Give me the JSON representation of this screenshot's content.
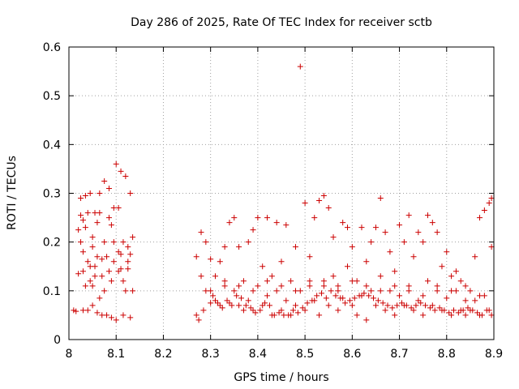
{
  "chart_data": {
    "type": "scatter",
    "title": "Day 286 of 2025, Rate Of TEC Index for receiver sctb",
    "xlabel": "GPS time / hours",
    "ylabel": "ROTI / TECUs",
    "xlim": [
      8.0,
      8.9
    ],
    "ylim": [
      0.0,
      0.6
    ],
    "xticks": [
      8,
      8.1,
      8.2,
      8.3,
      8.4,
      8.5,
      8.6,
      8.7,
      8.8,
      8.9
    ],
    "xtick_labels": [
      "8",
      "8.1",
      "8.2",
      "8.3",
      "8.4",
      "8.5",
      "8.6",
      "8.7",
      "8.8",
      "8.9"
    ],
    "yticks": [
      0,
      0.1,
      0.2,
      0.3,
      0.4,
      0.5,
      0.6
    ],
    "ytick_labels": [
      "0",
      "0.1",
      "0.2",
      "0.3",
      "0.4",
      "0.5",
      "0.6"
    ],
    "grid": true,
    "marker": "+",
    "marker_color": "#cc0000",
    "series": [
      {
        "name": "ROTI",
        "points": [
          [
            8.01,
            0.06
          ],
          [
            8.015,
            0.058
          ],
          [
            8.02,
            0.135
          ],
          [
            8.02,
            0.225
          ],
          [
            8.025,
            0.255
          ],
          [
            8.025,
            0.29
          ],
          [
            8.03,
            0.06
          ],
          [
            8.03,
            0.18
          ],
          [
            8.03,
            0.14
          ],
          [
            8.035,
            0.295
          ],
          [
            8.035,
            0.11
          ],
          [
            8.04,
            0.26
          ],
          [
            8.04,
            0.06
          ],
          [
            8.04,
            0.16
          ],
          [
            8.045,
            0.3
          ],
          [
            8.045,
            0.12
          ],
          [
            8.05,
            0.19
          ],
          [
            8.05,
            0.07
          ],
          [
            8.05,
            0.21
          ],
          [
            8.055,
            0.15
          ],
          [
            8.055,
            0.26
          ],
          [
            8.06,
            0.055
          ],
          [
            8.06,
            0.17
          ],
          [
            8.06,
            0.24
          ],
          [
            8.065,
            0.085
          ],
          [
            8.065,
            0.3
          ],
          [
            8.07,
            0.13
          ],
          [
            8.07,
            0.05
          ],
          [
            8.075,
            0.2
          ],
          [
            8.075,
            0.325
          ],
          [
            8.08,
            0.17
          ],
          [
            8.08,
            0.05
          ],
          [
            8.085,
            0.25
          ],
          [
            8.085,
            0.31
          ],
          [
            8.09,
            0.12
          ],
          [
            8.09,
            0.045
          ],
          [
            8.095,
            0.2
          ],
          [
            8.095,
            0.16
          ],
          [
            8.1,
            0.36
          ],
          [
            8.1,
            0.04
          ],
          [
            8.105,
            0.27
          ],
          [
            8.105,
            0.14
          ],
          [
            8.11,
            0.345
          ],
          [
            8.11,
            0.175
          ],
          [
            8.115,
            0.05
          ],
          [
            8.115,
            0.2
          ],
          [
            8.12,
            0.1
          ],
          [
            8.12,
            0.335
          ],
          [
            8.125,
            0.145
          ],
          [
            8.125,
            0.19
          ],
          [
            8.13,
            0.3
          ],
          [
            8.13,
            0.045
          ],
          [
            8.135,
            0.1
          ],
          [
            8.135,
            0.21
          ],
          [
            8.025,
            0.2
          ],
          [
            8.035,
            0.23
          ],
          [
            8.045,
            0.15
          ],
          [
            8.055,
            0.13
          ],
          [
            8.065,
            0.26
          ],
          [
            8.075,
            0.1
          ],
          [
            8.085,
            0.14
          ],
          [
            8.095,
            0.27
          ],
          [
            8.105,
            0.18
          ],
          [
            8.115,
            0.12
          ],
          [
            8.125,
            0.16
          ],
          [
            8.03,
            0.245
          ],
          [
            8.05,
            0.11
          ],
          [
            8.07,
            0.165
          ],
          [
            8.09,
            0.235
          ],
          [
            8.11,
            0.145
          ],
          [
            8.13,
            0.175
          ],
          [
            8.27,
            0.05
          ],
          [
            8.27,
            0.17
          ],
          [
            8.275,
            0.04
          ],
          [
            8.28,
            0.22
          ],
          [
            8.28,
            0.13
          ],
          [
            8.285,
            0.06
          ],
          [
            8.29,
            0.2
          ],
          [
            8.29,
            0.1
          ],
          [
            8.3,
            0.075
          ],
          [
            8.3,
            0.165
          ],
          [
            8.31,
            0.08
          ],
          [
            8.31,
            0.13
          ],
          [
            8.32,
            0.16
          ],
          [
            8.32,
            0.07
          ],
          [
            8.33,
            0.19
          ],
          [
            8.33,
            0.11
          ],
          [
            8.34,
            0.24
          ],
          [
            8.34,
            0.075
          ],
          [
            8.35,
            0.25
          ],
          [
            8.35,
            0.1
          ],
          [
            8.36,
            0.07
          ],
          [
            8.36,
            0.19
          ],
          [
            8.37,
            0.12
          ],
          [
            8.37,
            0.06
          ],
          [
            8.38,
            0.2
          ],
          [
            8.38,
            0.08
          ],
          [
            8.39,
            0.225
          ],
          [
            8.39,
            0.06
          ],
          [
            8.4,
            0.25
          ],
          [
            8.4,
            0.11
          ],
          [
            8.41,
            0.07
          ],
          [
            8.41,
            0.15
          ],
          [
            8.42,
            0.25
          ],
          [
            8.42,
            0.09
          ],
          [
            8.43,
            0.05
          ],
          [
            8.43,
            0.13
          ],
          [
            8.44,
            0.24
          ],
          [
            8.44,
            0.1
          ],
          [
            8.45,
            0.06
          ],
          [
            8.45,
            0.16
          ],
          [
            8.46,
            0.235
          ],
          [
            8.46,
            0.08
          ],
          [
            8.47,
            0.05
          ],
          [
            8.47,
            0.12
          ],
          [
            8.48,
            0.19
          ],
          [
            8.48,
            0.07
          ],
          [
            8.49,
            0.56
          ],
          [
            8.49,
            0.1
          ],
          [
            8.5,
            0.28
          ],
          [
            8.5,
            0.06
          ],
          [
            8.51,
            0.12
          ],
          [
            8.51,
            0.17
          ],
          [
            8.52,
            0.25
          ],
          [
            8.52,
            0.08
          ],
          [
            8.53,
            0.285
          ],
          [
            8.53,
            0.05
          ],
          [
            8.54,
            0.295
          ],
          [
            8.54,
            0.11
          ],
          [
            8.55,
            0.27
          ],
          [
            8.55,
            0.07
          ],
          [
            8.56,
            0.21
          ],
          [
            8.56,
            0.13
          ],
          [
            8.57,
            0.06
          ],
          [
            8.57,
            0.1
          ],
          [
            8.58,
            0.24
          ],
          [
            8.58,
            0.085
          ],
          [
            8.59,
            0.23
          ],
          [
            8.59,
            0.15
          ],
          [
            8.6,
            0.07
          ],
          [
            8.6,
            0.19
          ],
          [
            8.61,
            0.12
          ],
          [
            8.61,
            0.05
          ],
          [
            8.62,
            0.23
          ],
          [
            8.62,
            0.09
          ],
          [
            8.63,
            0.16
          ],
          [
            8.63,
            0.04
          ],
          [
            8.64,
            0.2
          ],
          [
            8.64,
            0.1
          ],
          [
            8.65,
            0.23
          ],
          [
            8.65,
            0.07
          ],
          [
            8.66,
            0.29
          ],
          [
            8.66,
            0.13
          ],
          [
            8.67,
            0.06
          ],
          [
            8.67,
            0.22
          ],
          [
            8.68,
            0.1
          ],
          [
            8.68,
            0.18
          ],
          [
            8.69,
            0.05
          ],
          [
            8.69,
            0.14
          ],
          [
            8.7,
            0.235
          ],
          [
            8.7,
            0.09
          ],
          [
            8.71,
            0.2
          ],
          [
            8.71,
            0.07
          ],
          [
            8.72,
            0.255
          ],
          [
            8.72,
            0.11
          ],
          [
            8.73,
            0.06
          ],
          [
            8.73,
            0.17
          ],
          [
            8.74,
            0.22
          ],
          [
            8.74,
            0.08
          ],
          [
            8.75,
            0.2
          ],
          [
            8.75,
            0.05
          ],
          [
            8.76,
            0.255
          ],
          [
            8.76,
            0.12
          ],
          [
            8.77,
            0.24
          ],
          [
            8.77,
            0.07
          ],
          [
            8.78,
            0.22
          ],
          [
            8.78,
            0.1
          ],
          [
            8.79,
            0.15
          ],
          [
            8.79,
            0.06
          ],
          [
            8.8,
            0.18
          ],
          [
            8.8,
            0.085
          ],
          [
            8.81,
            0.13
          ],
          [
            8.81,
            0.05
          ],
          [
            8.82,
            0.1
          ],
          [
            8.82,
            0.14
          ],
          [
            8.83,
            0.06
          ],
          [
            8.83,
            0.12
          ],
          [
            8.84,
            0.08
          ],
          [
            8.84,
            0.05
          ],
          [
            8.85,
            0.1
          ],
          [
            8.85,
            0.06
          ],
          [
            8.86,
            0.17
          ],
          [
            8.86,
            0.08
          ],
          [
            8.87,
            0.25
          ],
          [
            8.87,
            0.05
          ],
          [
            8.88,
            0.265
          ],
          [
            8.88,
            0.09
          ],
          [
            8.89,
            0.28
          ],
          [
            8.89,
            0.06
          ],
          [
            8.895,
            0.29
          ],
          [
            8.895,
            0.19
          ],
          [
            8.305,
            0.09
          ],
          [
            8.315,
            0.075
          ],
          [
            8.325,
            0.065
          ],
          [
            8.335,
            0.08
          ],
          [
            8.345,
            0.07
          ],
          [
            8.355,
            0.09
          ],
          [
            8.365,
            0.085
          ],
          [
            8.375,
            0.07
          ],
          [
            8.385,
            0.065
          ],
          [
            8.395,
            0.055
          ],
          [
            8.405,
            0.06
          ],
          [
            8.415,
            0.075
          ],
          [
            8.425,
            0.07
          ],
          [
            8.435,
            0.05
          ],
          [
            8.445,
            0.055
          ],
          [
            8.455,
            0.05
          ],
          [
            8.465,
            0.05
          ],
          [
            8.475,
            0.06
          ],
          [
            8.485,
            0.055
          ],
          [
            8.495,
            0.065
          ],
          [
            8.505,
            0.075
          ],
          [
            8.515,
            0.08
          ],
          [
            8.525,
            0.09
          ],
          [
            8.535,
            0.095
          ],
          [
            8.545,
            0.085
          ],
          [
            8.555,
            0.1
          ],
          [
            8.565,
            0.09
          ],
          [
            8.575,
            0.085
          ],
          [
            8.585,
            0.075
          ],
          [
            8.595,
            0.08
          ],
          [
            8.605,
            0.085
          ],
          [
            8.615,
            0.09
          ],
          [
            8.625,
            0.095
          ],
          [
            8.635,
            0.09
          ],
          [
            8.645,
            0.085
          ],
          [
            8.655,
            0.08
          ],
          [
            8.665,
            0.075
          ],
          [
            8.675,
            0.07
          ],
          [
            8.685,
            0.065
          ],
          [
            8.695,
            0.07
          ],
          [
            8.705,
            0.075
          ],
          [
            8.715,
            0.07
          ],
          [
            8.725,
            0.065
          ],
          [
            8.735,
            0.07
          ],
          [
            8.745,
            0.075
          ],
          [
            8.755,
            0.07
          ],
          [
            8.765,
            0.065
          ],
          [
            8.775,
            0.06
          ],
          [
            8.785,
            0.065
          ],
          [
            8.795,
            0.06
          ],
          [
            8.805,
            0.055
          ],
          [
            8.815,
            0.06
          ],
          [
            8.825,
            0.055
          ],
          [
            8.835,
            0.06
          ],
          [
            8.845,
            0.065
          ],
          [
            8.855,
            0.06
          ],
          [
            8.865,
            0.055
          ],
          [
            8.875,
            0.05
          ],
          [
            8.885,
            0.06
          ],
          [
            8.895,
            0.05
          ],
          [
            8.3,
            0.1
          ],
          [
            8.33,
            0.12
          ],
          [
            8.36,
            0.11
          ],
          [
            8.39,
            0.1
          ],
          [
            8.42,
            0.12
          ],
          [
            8.45,
            0.11
          ],
          [
            8.48,
            0.1
          ],
          [
            8.51,
            0.11
          ],
          [
            8.54,
            0.12
          ],
          [
            8.57,
            0.11
          ],
          [
            8.6,
            0.12
          ],
          [
            8.63,
            0.11
          ],
          [
            8.66,
            0.1
          ],
          [
            8.69,
            0.11
          ],
          [
            8.72,
            0.1
          ],
          [
            8.75,
            0.09
          ],
          [
            8.78,
            0.11
          ],
          [
            8.81,
            0.1
          ],
          [
            8.84,
            0.11
          ],
          [
            8.87,
            0.09
          ]
        ]
      }
    ]
  }
}
